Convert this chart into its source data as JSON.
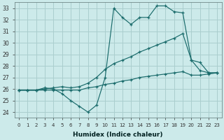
{
  "xlabel": "Humidex (Indice chaleur)",
  "bg_color": "#cceaea",
  "grid_color": "#aacece",
  "line_color": "#1a6b6b",
  "x_values": [
    0,
    1,
    2,
    3,
    4,
    5,
    6,
    7,
    8,
    9,
    10,
    11,
    12,
    13,
    14,
    15,
    16,
    17,
    18,
    19,
    20,
    21,
    22,
    23
  ],
  "line1": [
    25.9,
    25.9,
    25.9,
    25.9,
    25.9,
    25.9,
    25.9,
    25.9,
    26.1,
    26.2,
    26.4,
    26.5,
    26.7,
    26.8,
    27.0,
    27.1,
    27.2,
    27.3,
    27.4,
    27.5,
    27.2,
    27.2,
    27.3,
    27.4
  ],
  "line2": [
    25.9,
    25.9,
    25.9,
    26.0,
    26.1,
    26.2,
    26.1,
    26.2,
    26.5,
    27.0,
    27.7,
    28.2,
    28.5,
    28.8,
    29.2,
    29.5,
    29.8,
    30.1,
    30.4,
    30.8,
    28.5,
    27.6,
    27.4,
    27.4
  ],
  "line3": [
    25.9,
    25.9,
    25.9,
    26.1,
    26.0,
    25.6,
    25.0,
    24.5,
    24.0,
    24.6,
    27.0,
    33.0,
    32.2,
    31.6,
    32.2,
    32.2,
    33.2,
    33.2,
    32.7,
    32.6,
    28.5,
    28.3,
    27.4,
    27.4
  ],
  "ylim": [
    23.5,
    33.5
  ],
  "yticks": [
    24,
    25,
    26,
    27,
    28,
    29,
    30,
    31,
    32,
    33
  ],
  "xlim": [
    -0.5,
    23.5
  ]
}
